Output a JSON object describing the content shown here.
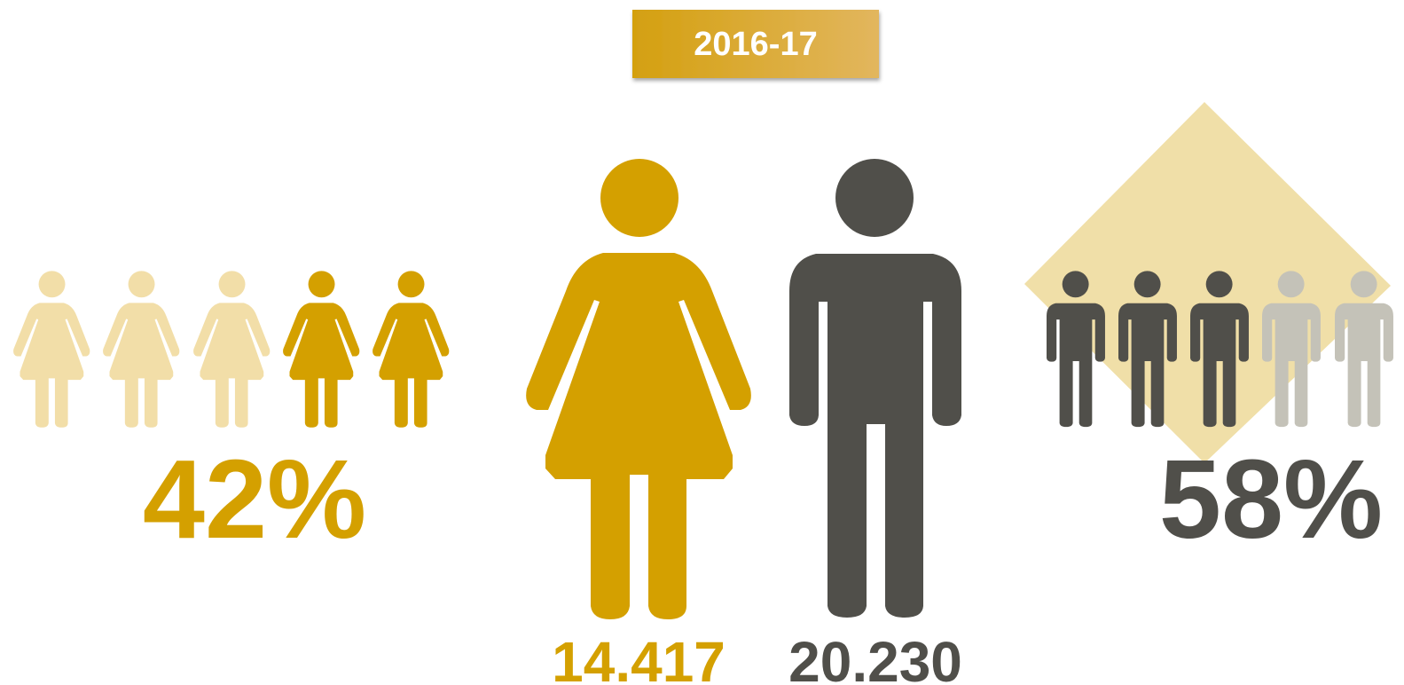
{
  "badge": {
    "label": "2016-17"
  },
  "women": {
    "share": "42%",
    "count": "14.417"
  },
  "men": {
    "share": "58%",
    "count": "20.230"
  }
}
